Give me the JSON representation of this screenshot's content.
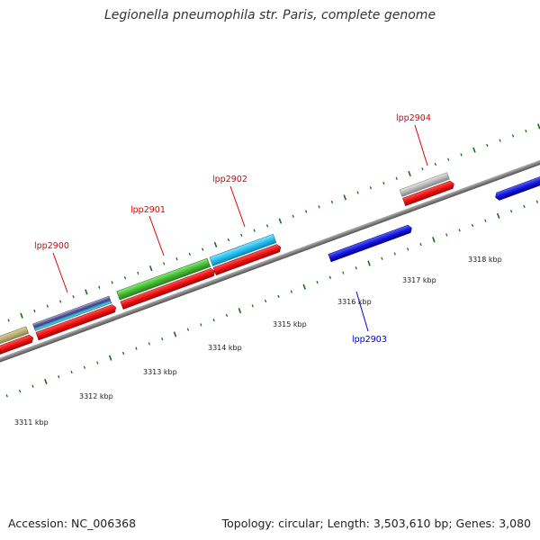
{
  "header": {
    "title": "Legionella pneumophila str. Paris, complete genome"
  },
  "footer": {
    "accession": "Accession: NC_006368",
    "topology": "Topology: circular; Length: 3,503,610 bp; Genes: 3,080"
  },
  "scale": {
    "labels": [
      "3311 kbp",
      "3312 kbp",
      "3313 kbp",
      "3314 kbp",
      "3315 kbp",
      "3316 kbp",
      "3317 kbp",
      "3318 kbp"
    ]
  },
  "genes": {
    "labels": [
      {
        "text": "lpp2900",
        "color": "#e00000"
      },
      {
        "text": "lpp2901",
        "color": "#e00000"
      },
      {
        "text": "lpp2902",
        "color": "#e00000"
      },
      {
        "text": "lpp2903",
        "color": "#0000cc"
      },
      {
        "text": "lpp2904",
        "color": "#e00000"
      }
    ]
  },
  "colors": {
    "backbone": "#808080",
    "forward_cds": "#ee1111",
    "reverse_cds": "#1515dd",
    "ticks": "#157015",
    "feature_khaki": "#b8b078",
    "feature_green": "#44bb33",
    "feature_cyan": "#22c0ee",
    "feature_grey": "#b8b8b8"
  }
}
